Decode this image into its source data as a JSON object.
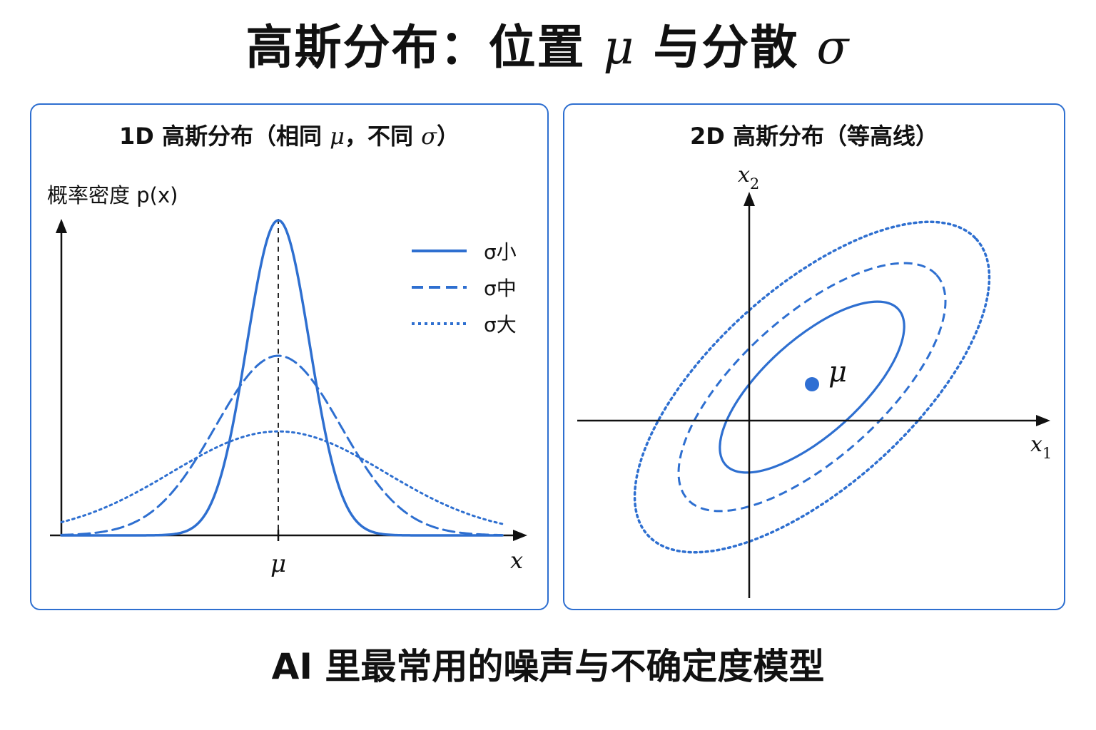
{
  "title": {
    "text": "高斯分布：位置 ",
    "mu": "μ",
    "mid": " 与分散 ",
    "sigma": "σ"
  },
  "subtitle": "AI 里最常用的噪声与不确定度模型",
  "colors": {
    "accent": "#2e6fd0",
    "axis": "#111111",
    "dot": "#2f6fd3"
  },
  "panel_1d": {
    "title": {
      "prefix": "1D 高斯分布（相同 ",
      "mu": "μ",
      "mid": "，不同 ",
      "sigma": "σ",
      "suffix": "）"
    },
    "ylabel": "概率密度 p(x)",
    "xlabel": "x",
    "mu_label": "μ",
    "legend": [
      {
        "label": "σ小",
        "style": "solid"
      },
      {
        "label": "σ中",
        "style": "dashed"
      },
      {
        "label": "σ大",
        "style": "dotted"
      }
    ]
  },
  "panel_2d": {
    "title": "2D 高斯分布（等高线）",
    "x1_label": "x",
    "x1_sub": "1",
    "x2_label": "x",
    "x2_sub": "2",
    "mu_label": "μ",
    "contours": [
      {
        "level": 1,
        "style": "solid"
      },
      {
        "level": 2,
        "style": "dashed"
      },
      {
        "level": 3,
        "style": "dotted"
      }
    ]
  },
  "chart_data": {
    "type": "line",
    "x_range": [
      -3.6,
      3.6
    ],
    "series": [
      {
        "name": "σ小",
        "sigma": 0.5,
        "style": "solid",
        "relative_peak": 1.0
      },
      {
        "name": "σ中",
        "sigma": 1.0,
        "style": "dashed",
        "relative_peak": 0.57
      },
      {
        "name": "σ大",
        "sigma": 1.7,
        "style": "dotted",
        "relative_peak": 0.33
      }
    ]
  }
}
